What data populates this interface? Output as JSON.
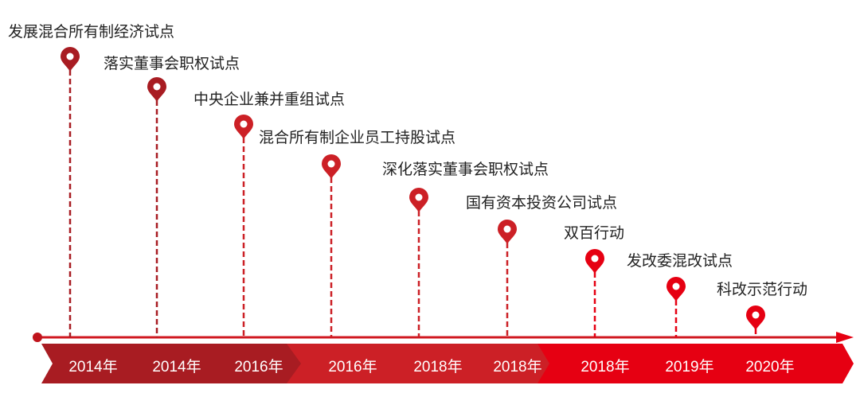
{
  "events": [
    {
      "label": "发展混合所有制经济试点",
      "year": "2014年"
    },
    {
      "label": "落实董事会职权试点",
      "year": "2014年"
    },
    {
      "label": "中央企业兼并重组试点",
      "year": "2016年"
    },
    {
      "label": "混合所有制企业员工持股试点",
      "year": "2016年"
    },
    {
      "label": "深化落实董事会职权试点",
      "year": "2018年"
    },
    {
      "label": "国有资本投资公司试点",
      "year": "2018年"
    },
    {
      "label": "双百行动",
      "year": "2018年"
    },
    {
      "label": "发改委混改试点",
      "year": "2019年"
    },
    {
      "label": "科改示范行动",
      "year": "2020年"
    }
  ],
  "colors": {
    "dark_red": "#a81c22",
    "mid_red": "#cc2026",
    "bright_red": "#e60012"
  }
}
